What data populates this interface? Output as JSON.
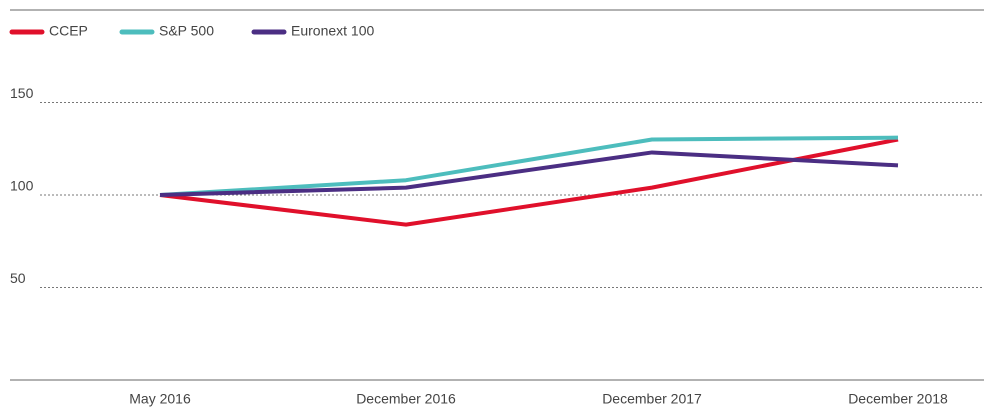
{
  "chart_data": {
    "type": "line",
    "categories": [
      "May 2016",
      "December 2016",
      "December 2017",
      "December 2018"
    ],
    "series": [
      {
        "name": "CCEP",
        "color": "#e0102b",
        "values": [
          100,
          84,
          104,
          130
        ]
      },
      {
        "name": "S&P 500",
        "color": "#4dbdbd",
        "values": [
          100,
          108,
          130,
          131
        ]
      },
      {
        "name": "Euronext 100",
        "color": "#4b2e83",
        "values": [
          100,
          104,
          123,
          116
        ]
      }
    ],
    "ylim": [
      0,
      200
    ],
    "yticks": [
      50,
      100,
      150
    ],
    "grid": true,
    "legend": "top-left"
  }
}
